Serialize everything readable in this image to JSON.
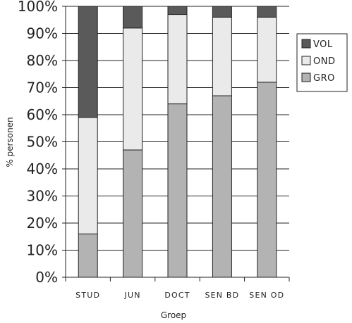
{
  "chart_data": {
    "type": "bar",
    "stacked": true,
    "categories": [
      "STUD",
      "JUN",
      "DOCT",
      "SEN BD",
      "SEN OD"
    ],
    "series": [
      {
        "name": "GRO",
        "color": "#b3b3b3",
        "values": [
          16,
          47,
          64,
          67,
          72
        ]
      },
      {
        "name": "OND",
        "color": "#eaeaea",
        "values": [
          43,
          45,
          33,
          29,
          24
        ]
      },
      {
        "name": "VOL",
        "color": "#5a5a5a",
        "values": [
          41,
          8,
          3,
          4,
          4
        ]
      }
    ],
    "legend_order": [
      "VOL",
      "OND",
      "GRO"
    ],
    "xlabel": "Groep",
    "ylabel": "% personen",
    "ylim": [
      0,
      100
    ],
    "yticks": [
      "0%",
      "10%",
      "20%",
      "30%",
      "40%",
      "50%",
      "60%",
      "70%",
      "80%",
      "90%",
      "100%"
    ],
    "grid": true,
    "legend_position": "right"
  }
}
